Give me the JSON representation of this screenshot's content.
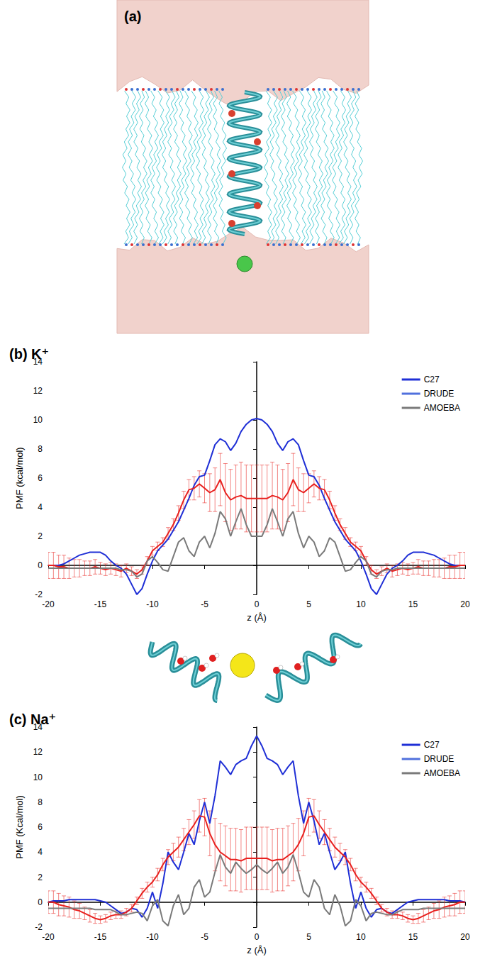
{
  "panel_a": {
    "label": "(a)"
  },
  "chart_data": [
    {
      "type": "line",
      "title": "(b) K⁺",
      "xlabel": "z (Å)",
      "ylabel": "PMF (kcal/mol)",
      "xlim": [
        -20,
        20
      ],
      "xticks": [
        -20,
        -15,
        -10,
        -5,
        0,
        5,
        10,
        15,
        20
      ],
      "ylim": [
        -2,
        14
      ],
      "yticks": [
        -2,
        0,
        2,
        4,
        6,
        8,
        10,
        12,
        14
      ],
      "grid": false,
      "legend": "upper right",
      "x": [
        -20,
        -19.5,
        -19,
        -18.5,
        -18,
        -17.5,
        -17,
        -16.5,
        -16,
        -15.5,
        -15,
        -14.5,
        -14,
        -13.5,
        -13,
        -12.5,
        -12,
        -11.5,
        -11,
        -10.5,
        -10,
        -9.5,
        -9,
        -8.5,
        -8,
        -7.5,
        -7,
        -6.5,
        -6,
        -5.5,
        -5,
        -4.5,
        -4,
        -3.5,
        -3,
        -2.5,
        -2,
        -1.5,
        -1,
        -0.5,
        0,
        0.5,
        1,
        1.5,
        2,
        2.5,
        3,
        3.5,
        4,
        4.5,
        5,
        5.5,
        6,
        6.5,
        7,
        7.5,
        8,
        8.5,
        9,
        9.5,
        10,
        10.5,
        11,
        11.5,
        12,
        12.5,
        13,
        13.5,
        14,
        14.5,
        15,
        15.5,
        16,
        16.5,
        17,
        17.5,
        18,
        18.5,
        19,
        19.5,
        20
      ],
      "series": [
        {
          "name": "C27",
          "color": "#1f2fd6",
          "values": [
            0,
            0,
            0,
            0.1,
            0.3,
            0.5,
            0.7,
            0.8,
            0.9,
            0.9,
            0.9,
            0.7,
            0.3,
            0,
            -0.2,
            -0.6,
            -1.3,
            -2.0,
            -1.6,
            -0.6,
            0.3,
            1.0,
            1.4,
            1.8,
            2.4,
            3.0,
            3.8,
            4.6,
            5.5,
            6.1,
            6.2,
            7.2,
            8.3,
            8.7,
            8.5,
            7.9,
            8.4,
            9.2,
            9.7,
            10.0,
            10.1,
            10.0,
            9.7,
            9.2,
            8.4,
            7.9,
            8.5,
            8.7,
            8.3,
            7.2,
            6.2,
            6.1,
            5.5,
            4.6,
            3.8,
            3.0,
            2.4,
            1.8,
            1.4,
            1.0,
            0.3,
            -0.6,
            -1.6,
            -2.0,
            -1.3,
            -0.6,
            -0.2,
            0,
            0.3,
            0.7,
            0.9,
            0.9,
            0.9,
            0.8,
            0.7,
            0.5,
            0.3,
            0.1,
            0,
            0,
            0
          ]
        },
        {
          "name": "DRUDE",
          "color": "#e8201e",
          "values": [
            0,
            0,
            -0.1,
            -0.1,
            -0.2,
            -0.2,
            -0.2,
            -0.2,
            -0.2,
            -0.1,
            -0.2,
            -0.3,
            -0.2,
            -0.3,
            -0.4,
            -0.2,
            -0.4,
            -0.6,
            -0.3,
            0.3,
            1.0,
            1.3,
            1.6,
            2.2,
            2.8,
            3.6,
            4.5,
            5.2,
            5.3,
            5.6,
            5.3,
            5.0,
            5.2,
            5.9,
            5.0,
            4.5,
            4.7,
            4.8,
            4.6,
            4.6,
            4.6,
            4.6,
            4.6,
            4.8,
            4.7,
            4.5,
            5.0,
            5.9,
            5.2,
            5.0,
            5.3,
            5.6,
            5.3,
            5.2,
            4.5,
            3.6,
            2.8,
            2.2,
            1.6,
            1.3,
            1.0,
            0.3,
            -0.3,
            -0.6,
            -0.4,
            -0.2,
            -0.4,
            -0.3,
            -0.2,
            -0.3,
            -0.2,
            -0.1,
            -0.2,
            -0.2,
            -0.2,
            -0.2,
            -0.2,
            -0.1,
            -0.1,
            0,
            0
          ],
          "errors": [
            0.9,
            0.9,
            0.8,
            0.8,
            0.7,
            0.6,
            0.6,
            0.5,
            0.5,
            0.5,
            0.4,
            0.4,
            0.4,
            0.4,
            0.4,
            0.3,
            0.3,
            0.3,
            0.3,
            0.3,
            0.3,
            0.3,
            0.3,
            0.4,
            0.4,
            0.5,
            0.6,
            0.7,
            0.8,
            0.9,
            1.0,
            1.3,
            1.5,
            1.8,
            2.0,
            2.1,
            2.2,
            2.3,
            2.3,
            2.3,
            2.3,
            2.3,
            2.3,
            2.3,
            2.2,
            2.1,
            2.0,
            1.8,
            1.5,
            1.3,
            1.0,
            0.9,
            0.8,
            0.7,
            0.6,
            0.5,
            0.4,
            0.4,
            0.3,
            0.3,
            0.3,
            0.3,
            0.3,
            0.3,
            0.3,
            0.3,
            0.4,
            0.4,
            0.4,
            0.4,
            0.4,
            0.5,
            0.5,
            0.5,
            0.6,
            0.6,
            0.7,
            0.8,
            0.8,
            0.9,
            0.9
          ]
        },
        {
          "name": "AMOEBA",
          "color": "#7a7a7a",
          "values": [
            -0.2,
            -0.2,
            -0.2,
            -0.2,
            -0.2,
            -0.2,
            -0.2,
            -0.2,
            -0.2,
            -0.2,
            -0.2,
            -0.2,
            -0.2,
            -0.2,
            -0.3,
            -0.3,
            -0.4,
            -0.8,
            -0.6,
            0.3,
            0.6,
            0.2,
            -0.3,
            -0.4,
            0.6,
            1.6,
            1.9,
            1.0,
            0.6,
            1.6,
            2.0,
            1.2,
            2.2,
            3.7,
            3.2,
            2.0,
            3.0,
            3.9,
            2.8,
            2.0,
            2.0,
            2.0,
            2.8,
            3.9,
            3.0,
            2.0,
            3.2,
            3.7,
            2.2,
            1.2,
            2.0,
            1.6,
            0.6,
            1.0,
            1.9,
            1.6,
            0.6,
            -0.4,
            -0.3,
            0.2,
            0.6,
            0.3,
            -0.6,
            -0.8,
            -0.4,
            -0.3,
            -0.3,
            -0.2,
            -0.2,
            -0.2,
            -0.2,
            -0.2,
            -0.2,
            -0.2,
            -0.2,
            -0.2,
            -0.2,
            -0.2,
            -0.2,
            -0.2,
            -0.2
          ]
        }
      ]
    },
    {
      "type": "line",
      "title": "(c) Na⁺",
      "xlabel": "z (Å)",
      "ylabel": "PMF (Kcal/mol)",
      "xlim": [
        -20,
        20
      ],
      "xticks": [
        -20,
        -15,
        -10,
        -5,
        0,
        5,
        10,
        15,
        20
      ],
      "ylim": [
        -2,
        14
      ],
      "yticks": [
        -2,
        0,
        2,
        4,
        6,
        8,
        10,
        12,
        14
      ],
      "grid": false,
      "legend": "upper right",
      "x": [
        -20,
        -19.5,
        -19,
        -18.5,
        -18,
        -17.5,
        -17,
        -16.5,
        -16,
        -15.5,
        -15,
        -14.5,
        -14,
        -13.5,
        -13,
        -12.5,
        -12,
        -11.5,
        -11,
        -10.5,
        -10,
        -9.5,
        -9,
        -8.5,
        -8,
        -7.5,
        -7,
        -6.5,
        -6,
        -5.5,
        -5,
        -4.5,
        -4,
        -3.5,
        -3,
        -2.5,
        -2,
        -1.5,
        -1,
        -0.5,
        0,
        0.5,
        1,
        1.5,
        2,
        2.5,
        3,
        3.5,
        4,
        4.5,
        5,
        5.5,
        6,
        6.5,
        7,
        7.5,
        8,
        8.5,
        9,
        9.5,
        10,
        10.5,
        11,
        11.5,
        12,
        12.5,
        13,
        13.5,
        14,
        14.5,
        15,
        15.5,
        16,
        16.5,
        17,
        17.5,
        18,
        18.5,
        19,
        19.5,
        20
      ],
      "series": [
        {
          "name": "C27",
          "color": "#1f2fd6",
          "values": [
            0,
            0.1,
            0.1,
            0.1,
            0.2,
            0.2,
            0.2,
            0.2,
            0.2,
            0.2,
            0.1,
            0,
            -0.3,
            -0.6,
            -0.9,
            -0.8,
            -0.5,
            -0.6,
            -1.2,
            -0.5,
            0.8,
            -0.5,
            1.5,
            4.0,
            3.2,
            2.6,
            4.0,
            5.5,
            4.6,
            6.5,
            8.0,
            6.3,
            8.5,
            11.3,
            10.8,
            10.2,
            11.0,
            11.3,
            11.5,
            12.5,
            13.3,
            12.5,
            11.5,
            11.3,
            11.0,
            10.2,
            10.8,
            11.3,
            8.5,
            6.3,
            8.0,
            6.5,
            4.6,
            5.5,
            4.0,
            2.6,
            3.2,
            4.0,
            1.5,
            -0.5,
            0.8,
            -0.5,
            -1.2,
            -0.6,
            -0.5,
            -0.8,
            -0.9,
            -0.6,
            -0.3,
            0,
            0.1,
            0.2,
            0.2,
            0.2,
            0.2,
            0.2,
            0.2,
            0.1,
            0.1,
            0.1,
            0
          ]
        },
        {
          "name": "DRUDE",
          "color": "#e8201e",
          "values": [
            0,
            0,
            -0.2,
            -0.3,
            -0.4,
            -0.6,
            -0.7,
            -0.9,
            -1.1,
            -1.3,
            -1.4,
            -1.3,
            -1.1,
            -1.0,
            -1.0,
            -0.8,
            -0.5,
            0.1,
            0.7,
            1.2,
            1.6,
            2.2,
            3.0,
            3.6,
            4.0,
            4.4,
            5.0,
            5.6,
            6.2,
            6.9,
            6.8,
            5.5,
            4.6,
            4.0,
            3.7,
            3.4,
            3.4,
            3.3,
            3.5,
            3.5,
            3.5,
            3.5,
            3.5,
            3.3,
            3.4,
            3.4,
            3.7,
            4.0,
            4.6,
            5.5,
            6.8,
            6.9,
            6.2,
            5.6,
            5.0,
            4.4,
            4.0,
            3.6,
            3.0,
            2.2,
            1.6,
            1.2,
            0.7,
            0.1,
            -0.5,
            -0.8,
            -1.0,
            -1.0,
            -1.1,
            -1.3,
            -1.4,
            -1.3,
            -1.1,
            -0.9,
            -0.7,
            -0.6,
            -0.4,
            -0.3,
            -0.2,
            0,
            0
          ],
          "errors": [
            0.9,
            0.9,
            0.9,
            0.8,
            0.8,
            0.7,
            0.6,
            0.5,
            0.5,
            0.4,
            0.3,
            0.3,
            0.3,
            0.3,
            0.3,
            0.3,
            0.3,
            0.3,
            0.4,
            0.4,
            0.4,
            0.5,
            0.5,
            0.6,
            0.7,
            0.8,
            0.9,
            1.0,
            1.1,
            1.3,
            1.5,
            1.8,
            2.1,
            2.3,
            2.4,
            2.5,
            2.5,
            2.5,
            2.5,
            2.5,
            2.5,
            2.5,
            2.5,
            2.5,
            2.5,
            2.5,
            2.4,
            2.3,
            2.1,
            1.8,
            1.5,
            1.3,
            1.1,
            1.0,
            0.9,
            0.8,
            0.7,
            0.6,
            0.5,
            0.5,
            0.4,
            0.4,
            0.4,
            0.3,
            0.3,
            0.3,
            0.3,
            0.3,
            0.3,
            0.3,
            0.3,
            0.4,
            0.5,
            0.5,
            0.6,
            0.7,
            0.8,
            0.8,
            0.9,
            0.9,
            0.9
          ]
        },
        {
          "name": "AMOEBA",
          "color": "#7a7a7a",
          "values": [
            -0.5,
            -0.5,
            -0.5,
            -0.5,
            -0.5,
            -0.5,
            -0.5,
            -0.5,
            -0.5,
            -0.6,
            -0.6,
            -0.6,
            -0.6,
            -0.8,
            -1.0,
            -1.0,
            -0.9,
            -0.8,
            -0.9,
            -1.5,
            -0.3,
            0.2,
            -1.5,
            -1.9,
            -0.3,
            0.6,
            -1.0,
            -0.5,
            1.2,
            1.8,
            0.4,
            0.8,
            2.4,
            3.8,
            2.8,
            2.3,
            3.2,
            2.7,
            2.3,
            2.6,
            3.0,
            2.6,
            2.3,
            2.7,
            3.2,
            2.3,
            2.8,
            3.8,
            2.4,
            0.8,
            0.4,
            1.8,
            1.2,
            -0.5,
            -1.0,
            0.6,
            -0.3,
            -1.9,
            -1.5,
            0.2,
            -0.3,
            -1.5,
            -0.9,
            -0.8,
            -0.9,
            -1.0,
            -1.0,
            -0.8,
            -0.6,
            -0.6,
            -0.6,
            -0.6,
            -0.5,
            -0.5,
            -0.5,
            -0.5,
            -0.5,
            -0.5,
            -0.5,
            -0.5,
            -0.5
          ]
        }
      ]
    }
  ]
}
